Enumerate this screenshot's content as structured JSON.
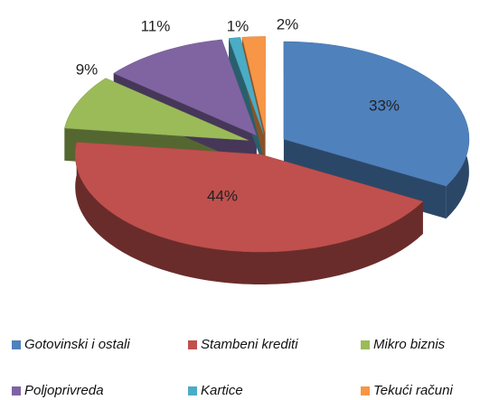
{
  "chart_data": {
    "type": "pie3d",
    "categories": [
      "Gotovinski i ostali",
      "Stambeni krediti",
      "Mikro biznis",
      "Poljoprivreda",
      "Kartice",
      "Tekući računi"
    ],
    "values": [
      33,
      44,
      9,
      11,
      1,
      2
    ],
    "value_labels": [
      "33%",
      "44%",
      "9%",
      "11%",
      "1%",
      "2%"
    ],
    "colors": [
      "#4f81bd",
      "#c0504d",
      "#9bbb59",
      "#8064a2",
      "#4bacc6",
      "#f79646"
    ],
    "legend": "bottom"
  }
}
